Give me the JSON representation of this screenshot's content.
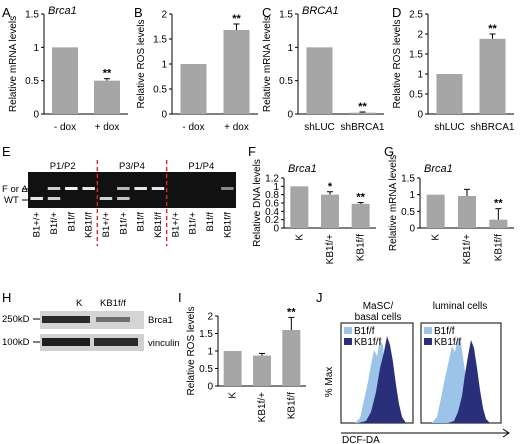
{
  "panels": {
    "A": {
      "letter": "A",
      "gene": "Brca1",
      "chart_data": {
        "type": "bar",
        "categories": [
          "- dox",
          "+ dox"
        ],
        "values": [
          1.0,
          0.5
        ],
        "errors": [
          0,
          0.03
        ],
        "significance": [
          "",
          "**"
        ],
        "ylabel": "Relative mRNA levels",
        "ylim": [
          0,
          1.5
        ],
        "yticks": [
          0,
          0.5,
          1,
          1.5
        ],
        "bar_color": "#a6a6a6"
      }
    },
    "B": {
      "letter": "B",
      "gene": "",
      "chart_data": {
        "type": "bar",
        "categories": [
          "- dox",
          "+ dox"
        ],
        "values": [
          1.0,
          1.68
        ],
        "errors": [
          0,
          0.12
        ],
        "significance": [
          "",
          "**"
        ],
        "ylabel": "Relative ROS levels",
        "ylim": [
          0,
          2
        ],
        "yticks": [
          0,
          0.5,
          1,
          1.5,
          2
        ],
        "bar_color": "#a6a6a6"
      }
    },
    "C": {
      "letter": "C",
      "gene": "BRCA1",
      "chart_data": {
        "type": "bar",
        "categories": [
          "shLUC",
          "shBRCA1"
        ],
        "values": [
          1.0,
          0.02
        ],
        "errors": [
          0,
          0.01
        ],
        "significance": [
          "",
          "**"
        ],
        "ylabel": "Relative mRNA levels",
        "ylim": [
          0,
          1.5
        ],
        "yticks": [
          0,
          0.5,
          1,
          1.5
        ],
        "bar_color": "#a6a6a6"
      }
    },
    "D": {
      "letter": "D",
      "gene": "",
      "chart_data": {
        "type": "bar",
        "categories": [
          "shLUC",
          "shBRCA1"
        ],
        "values": [
          1.0,
          1.88
        ],
        "errors": [
          0,
          0.12
        ],
        "significance": [
          "",
          "**"
        ],
        "ylabel": "Relative ROS levels",
        "ylim": [
          0,
          2.5
        ],
        "yticks": [
          0,
          0.5,
          1,
          1.5,
          2,
          2.5
        ],
        "bar_color": "#a6a6a6"
      }
    },
    "E": {
      "letter": "E",
      "groups": [
        "P1/P2",
        "P3/P4",
        "P1/P4"
      ],
      "lanes": [
        "B1+/+",
        "B1f/+",
        "B1f/f",
        "KB1f/f",
        "B1+/+",
        "B1f/+",
        "B1f/f",
        "KB1f/f",
        "B1+/+",
        "B1f/+",
        "B1f/f",
        "KB1f/f"
      ],
      "band_labels": [
        "F or Δ",
        "WT"
      ]
    },
    "F": {
      "letter": "F",
      "gene": "Brca1",
      "chart_data": {
        "type": "bar",
        "categories": [
          "K",
          "KB1f/+",
          "KB1f/f"
        ],
        "values": [
          1.0,
          0.8,
          0.58
        ],
        "errors": [
          0,
          0.07,
          0.03
        ],
        "significance": [
          "",
          "*",
          "**"
        ],
        "ylabel": "Relative DNA levels",
        "ylim": [
          0,
          1.2
        ],
        "yticks": [
          0,
          0.2,
          0.4,
          0.6,
          0.8,
          1,
          1.2
        ],
        "bar_color": "#a6a6a6"
      }
    },
    "G": {
      "letter": "G",
      "gene": "Brca1",
      "chart_data": {
        "type": "bar",
        "categories": [
          "K",
          "KB1f/+",
          "KB1f/f"
        ],
        "values": [
          1.0,
          0.96,
          0.25
        ],
        "errors": [
          0,
          0.2,
          0.33
        ],
        "significance": [
          "",
          "",
          "**"
        ],
        "ylabel": "Relative mRNA levels",
        "ylim": [
          0,
          1.5
        ],
        "yticks": [
          0,
          0.5,
          1,
          1.5
        ],
        "bar_color": "#a6a6a6"
      }
    },
    "H": {
      "letter": "H",
      "lane_labels": [
        "K",
        "KB1f/f"
      ],
      "markers": [
        "250kD",
        "100kD"
      ],
      "proteins": [
        "Brca1",
        "vinculin"
      ]
    },
    "I": {
      "letter": "I",
      "chart_data": {
        "type": "bar",
        "categories": [
          "K",
          "KB1f/+",
          "KB1f/f"
        ],
        "values": [
          1.0,
          0.87,
          1.6
        ],
        "errors": [
          0,
          0.06,
          0.36
        ],
        "significance": [
          "",
          "",
          "**"
        ],
        "ylabel": "Relative ROS levels",
        "ylim": [
          0,
          2
        ],
        "yticks": [
          0,
          0.5,
          1,
          1.5,
          2
        ],
        "bar_color": "#a6a6a6"
      }
    },
    "J": {
      "letter": "J",
      "subplots": [
        {
          "title": "MaSC/\nbasal cells",
          "legend": [
            "B1f/f",
            "KB1f/f"
          ]
        },
        {
          "title": "luminal cells",
          "legend": [
            "B1f/f",
            "KB1f/f"
          ]
        }
      ],
      "ylabel": "% Max",
      "xlabel": "DCF-DA",
      "colors": {
        "B1f/f": "#9cc4e8",
        "KB1f/f": "#2a2f7a"
      }
    }
  }
}
